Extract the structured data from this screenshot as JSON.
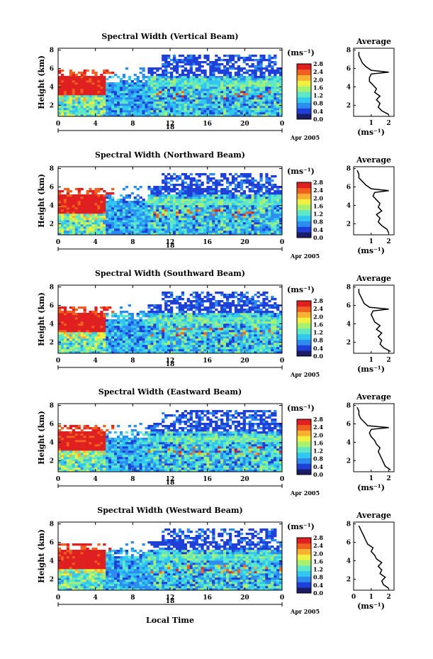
{
  "chart_data": [
    {
      "type": "heatmap",
      "title": "Spectral Width (Vertical Beam)",
      "ylabel": "Height (km)",
      "x_ticks": [
        "0",
        "4",
        "8",
        "12",
        "16",
        "20",
        "0"
      ],
      "y_ticks": [
        "2",
        "4",
        "6",
        "8"
      ],
      "xlim": [
        0,
        24
      ],
      "ylim": [
        0.8,
        8.2
      ],
      "date_label": "18",
      "date_suffix": "Apr 2005",
      "colorbar": {
        "unit": "(ms⁻¹)",
        "ticks": [
          "0.0",
          "0.4",
          "0.8",
          "1.2",
          "1.6",
          "2.0",
          "2.4",
          "2.8"
        ]
      },
      "average_profile": {
        "title": "Average",
        "xlabel": "(ms⁻¹)",
        "x_ticks": [
          "1",
          "2"
        ],
        "y_ticks": [
          "2",
          "4",
          "6",
          "8"
        ],
        "xlim": [
          0,
          2.3
        ],
        "ylim": [
          0.8,
          8.2
        ],
        "height": [
          1.0,
          1.4,
          1.8,
          2.2,
          2.6,
          3.0,
          3.4,
          3.8,
          4.2,
          4.6,
          5.0,
          5.4,
          5.6,
          5.8,
          6.2,
          6.6,
          7.0,
          7.4,
          7.8
        ],
        "width": [
          2.0,
          1.6,
          1.4,
          1.5,
          1.3,
          1.5,
          1.2,
          1.3,
          1.1,
          0.9,
          0.9,
          1.0,
          2.0,
          1.0,
          0.7,
          0.5,
          0.4,
          0.3,
          0.3
        ]
      }
    },
    {
      "type": "heatmap",
      "title": "Spectral Width (Northward Beam)",
      "ylabel": "Height (km)",
      "x_ticks": [
        "0",
        "4",
        "8",
        "12",
        "16",
        "20",
        "0"
      ],
      "y_ticks": [
        "2",
        "4",
        "6",
        "8"
      ],
      "xlim": [
        0,
        24
      ],
      "ylim": [
        0.8,
        8.2
      ],
      "date_label": "18",
      "date_suffix": "Apr 2005",
      "colorbar": {
        "unit": "(ms⁻¹)",
        "ticks": [
          "0.0",
          "0.4",
          "0.8",
          "1.2",
          "1.6",
          "2.0",
          "2.4",
          "2.8"
        ]
      },
      "average_profile": {
        "title": "Average",
        "xlabel": "(ms⁻¹)",
        "x_ticks": [
          "1",
          "2"
        ],
        "y_ticks": [
          "2",
          "4",
          "6",
          "8"
        ],
        "xlim": [
          0,
          2.3
        ],
        "ylim": [
          0.8,
          8.2
        ],
        "height": [
          1.0,
          1.4,
          1.8,
          2.2,
          2.6,
          3.0,
          3.4,
          3.8,
          4.2,
          4.6,
          5.0,
          5.4,
          5.6,
          5.8,
          6.2,
          6.6,
          7.0,
          7.4,
          7.8
        ],
        "width": [
          2.0,
          1.9,
          1.6,
          1.4,
          1.5,
          1.3,
          1.6,
          1.4,
          1.5,
          1.3,
          1.1,
          1.2,
          2.0,
          1.0,
          0.7,
          0.5,
          0.3,
          0.3,
          0.2
        ]
      }
    },
    {
      "type": "heatmap",
      "title": "Spectral Width (Southward Beam)",
      "ylabel": "Height (km)",
      "x_ticks": [
        "0",
        "4",
        "8",
        "12",
        "16",
        "20",
        "0"
      ],
      "y_ticks": [
        "2",
        "4",
        "6",
        "8"
      ],
      "xlim": [
        0,
        24
      ],
      "ylim": [
        0.8,
        8.2
      ],
      "date_label": "18",
      "date_suffix": "Apr 2005",
      "colorbar": {
        "unit": "(ms⁻¹)",
        "ticks": [
          "0.0",
          "0.4",
          "0.8",
          "1.2",
          "1.6",
          "2.0",
          "2.4",
          "2.8"
        ]
      },
      "average_profile": {
        "title": "Average",
        "xlabel": "(ms⁻¹)",
        "x_ticks": [
          "1",
          "2"
        ],
        "y_ticks": [
          "2",
          "4",
          "6",
          "8"
        ],
        "xlim": [
          0,
          2.3
        ],
        "ylim": [
          0.8,
          8.2
        ],
        "height": [
          1.0,
          1.4,
          1.8,
          2.2,
          2.6,
          3.0,
          3.4,
          3.8,
          4.2,
          4.6,
          5.0,
          5.4,
          5.6,
          5.8,
          6.2,
          6.6,
          7.0,
          7.4,
          7.8
        ],
        "width": [
          2.1,
          1.7,
          1.5,
          1.6,
          1.4,
          1.6,
          1.3,
          1.5,
          1.2,
          1.1,
          1.0,
          1.1,
          2.0,
          0.9,
          0.6,
          0.5,
          0.4,
          0.3,
          0.3
        ]
      }
    },
    {
      "type": "heatmap",
      "title": "Spectral Width (Eastward Beam)",
      "ylabel": "Height (km)",
      "x_ticks": [
        "0",
        "4",
        "8",
        "12",
        "16",
        "20",
        "0"
      ],
      "y_ticks": [
        "2",
        "4",
        "6",
        "8"
      ],
      "xlim": [
        0,
        24
      ],
      "ylim": [
        0.8,
        8.2
      ],
      "date_label": "18",
      "date_suffix": "Apr 2005",
      "colorbar": {
        "unit": "(ms⁻¹)",
        "ticks": [
          "0.0",
          "0.4",
          "0.8",
          "1.2",
          "1.6",
          "2.0",
          "2.4",
          "2.8"
        ]
      },
      "average_profile": {
        "title": "Average",
        "xlabel": "(ms⁻¹)",
        "x_ticks": [
          "1",
          "2"
        ],
        "y_ticks": [
          "2",
          "4",
          "6",
          "8"
        ],
        "xlim": [
          0,
          2.3
        ],
        "ylim": [
          0.8,
          8.2
        ],
        "height": [
          1.0,
          1.4,
          1.8,
          2.2,
          2.6,
          3.0,
          3.4,
          3.8,
          4.2,
          4.6,
          5.0,
          5.4,
          5.6,
          5.8,
          6.2,
          6.6,
          7.0,
          7.4,
          7.8
        ],
        "width": [
          2.1,
          1.8,
          1.7,
          1.6,
          1.5,
          1.4,
          1.5,
          1.3,
          1.2,
          1.0,
          0.9,
          1.0,
          2.0,
          0.8,
          0.6,
          0.4,
          0.3,
          0.3,
          0.2
        ]
      }
    },
    {
      "type": "heatmap",
      "title": "Spectral Width (Westward Beam)",
      "ylabel": "Height (km)",
      "x_ticks": [
        "0",
        "4",
        "8",
        "12",
        "16",
        "20",
        "0"
      ],
      "y_ticks": [
        "2",
        "4",
        "6",
        "8"
      ],
      "xlim": [
        0,
        24
      ],
      "ylim": [
        0.8,
        8.2
      ],
      "date_label": "18",
      "date_suffix": "Apr 2005",
      "colorbar": {
        "unit": "(ms⁻¹)",
        "ticks": [
          "0.0",
          "0.4",
          "0.8",
          "1.2",
          "1.6",
          "2.0",
          "2.4",
          "2.8"
        ]
      },
      "average_profile": {
        "title": "Average",
        "xlabel": "(ms⁻¹)",
        "x_ticks": [
          "0",
          "1",
          "2"
        ],
        "y_ticks": [
          "2",
          "4",
          "6",
          "8"
        ],
        "xlim": [
          0,
          2.3
        ],
        "ylim": [
          0.8,
          8.2
        ],
        "height": [
          1.0,
          1.4,
          1.8,
          2.2,
          2.6,
          3.0,
          3.4,
          3.8,
          4.2,
          4.6,
          5.0,
          5.4,
          5.8,
          6.2,
          6.6,
          7.0,
          7.4,
          7.8
        ],
        "width": [
          2.0,
          1.7,
          1.6,
          1.8,
          1.5,
          1.6,
          1.4,
          1.6,
          1.3,
          1.2,
          1.0,
          1.1,
          0.8,
          0.7,
          0.6,
          0.5,
          0.4,
          0.3
        ]
      }
    }
  ],
  "footer": {
    "xlabel": "Local Time"
  },
  "colors": {
    "scale": [
      "#1b1b66",
      "#1e3fd8",
      "#2c8cf0",
      "#30c8f0",
      "#5ee8c8",
      "#a8f070",
      "#f0f040",
      "#f8b030",
      "#f06020",
      "#e02020"
    ]
  }
}
